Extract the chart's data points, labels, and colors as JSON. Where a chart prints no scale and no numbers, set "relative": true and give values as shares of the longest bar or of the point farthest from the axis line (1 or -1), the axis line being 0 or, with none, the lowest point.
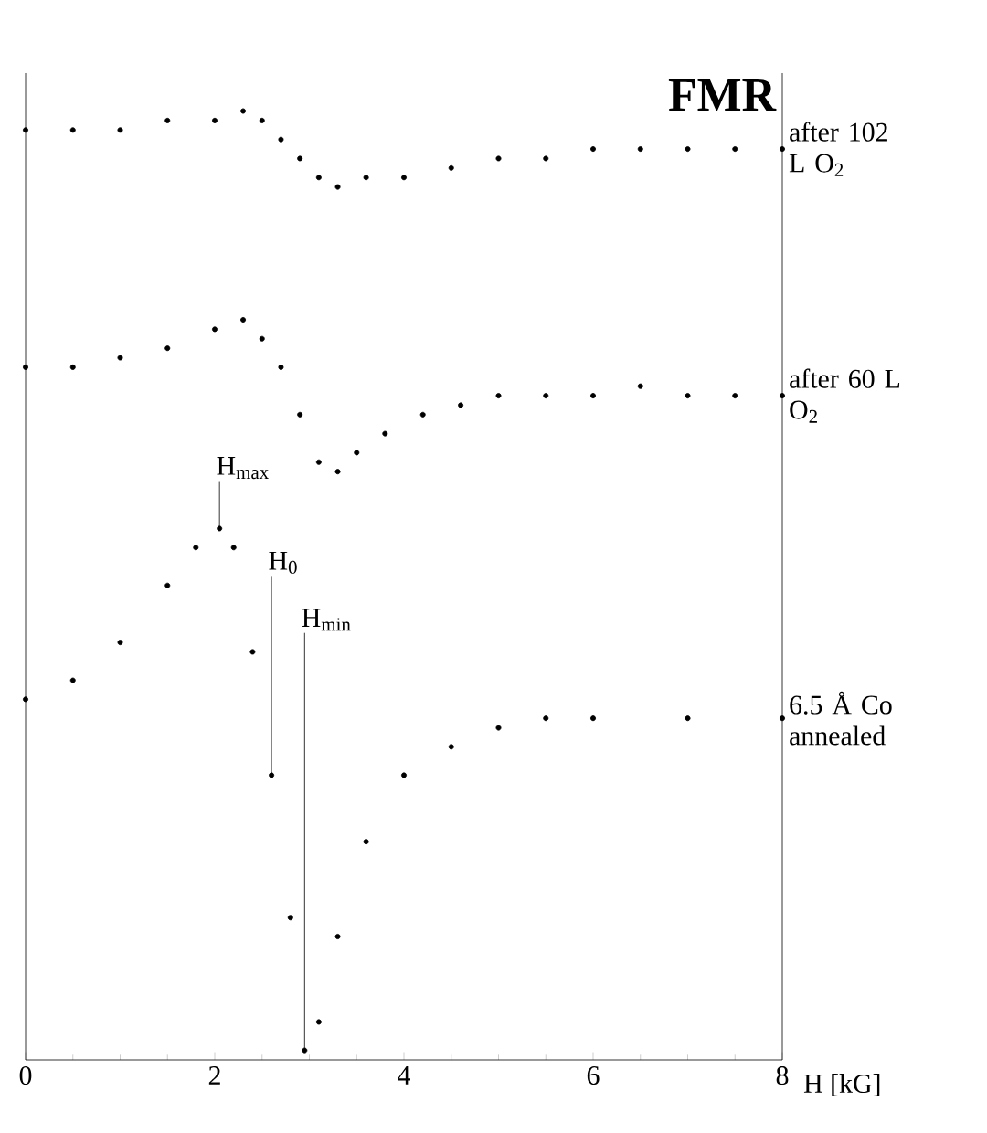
{
  "chart_data": {
    "type": "scatter",
    "title": "FMR",
    "xlabel": "H [kG]",
    "xlim": [
      0,
      8
    ],
    "xticks": [
      0,
      2,
      4,
      6,
      8
    ],
    "relative": true,
    "marker": "circle",
    "series": [
      {
        "name": "after 102 L O$_{2}$",
        "color": "#000000",
        "x": [
          0,
          0.5,
          1,
          1.5,
          2,
          2.3,
          2.5,
          2.7,
          2.9,
          3.1,
          3.3,
          3.6,
          4,
          4.5,
          5,
          5.5,
          6,
          6.5,
          7,
          7.5,
          8
        ],
        "values": [
          0.98,
          0.98,
          0.98,
          0.99,
          0.99,
          1,
          0.99,
          0.97,
          0.95,
          0.93,
          0.92,
          0.93,
          0.93,
          0.94,
          0.95,
          0.95,
          0.96,
          0.96,
          0.96,
          0.96,
          0.96
        ]
      },
      {
        "name": "after 60 L O$_{2}$",
        "color": "#000000",
        "x": [
          0,
          0.5,
          1,
          1.5,
          2,
          2.3,
          2.5,
          2.7,
          2.9,
          3.1,
          3.3,
          3.5,
          3.8,
          4.2,
          4.6,
          5,
          5.5,
          6,
          6.5,
          7,
          7.5,
          8
        ],
        "values": [
          0.73,
          0.73,
          0.74,
          0.75,
          0.77,
          0.78,
          0.76,
          0.73,
          0.68,
          0.63,
          0.62,
          0.64,
          0.66,
          0.68,
          0.69,
          0.7,
          0.7,
          0.7,
          0.71,
          0.7,
          0.7,
          0.7
        ]
      },
      {
        "name": "6.5 Å Co annealed",
        "color": "#000000",
        "x": [
          0,
          0.5,
          1,
          1.5,
          1.8,
          2.05,
          2.2,
          2.4,
          2.6,
          2.8,
          2.95,
          3.1,
          3.3,
          3.6,
          4,
          4.5,
          5,
          5.5,
          6,
          7,
          8
        ],
        "values": [
          0.38,
          0.4,
          0.44,
          0.5,
          0.54,
          0.56,
          0.54,
          0.43,
          0.3,
          0.15,
          0.01,
          0.04,
          0.13,
          0.23,
          0.3,
          0.33,
          0.35,
          0.36,
          0.36,
          0.36,
          0.36
        ]
      }
    ],
    "annotations": [
      {
        "text": "H$_{max}$",
        "x": 2.05,
        "y": 0.56
      },
      {
        "text": "H$_{0}$",
        "x": 2.6,
        "y": 0.3
      },
      {
        "text": "H$_{min}$",
        "x": 2.95,
        "y": 0.01
      }
    ]
  }
}
